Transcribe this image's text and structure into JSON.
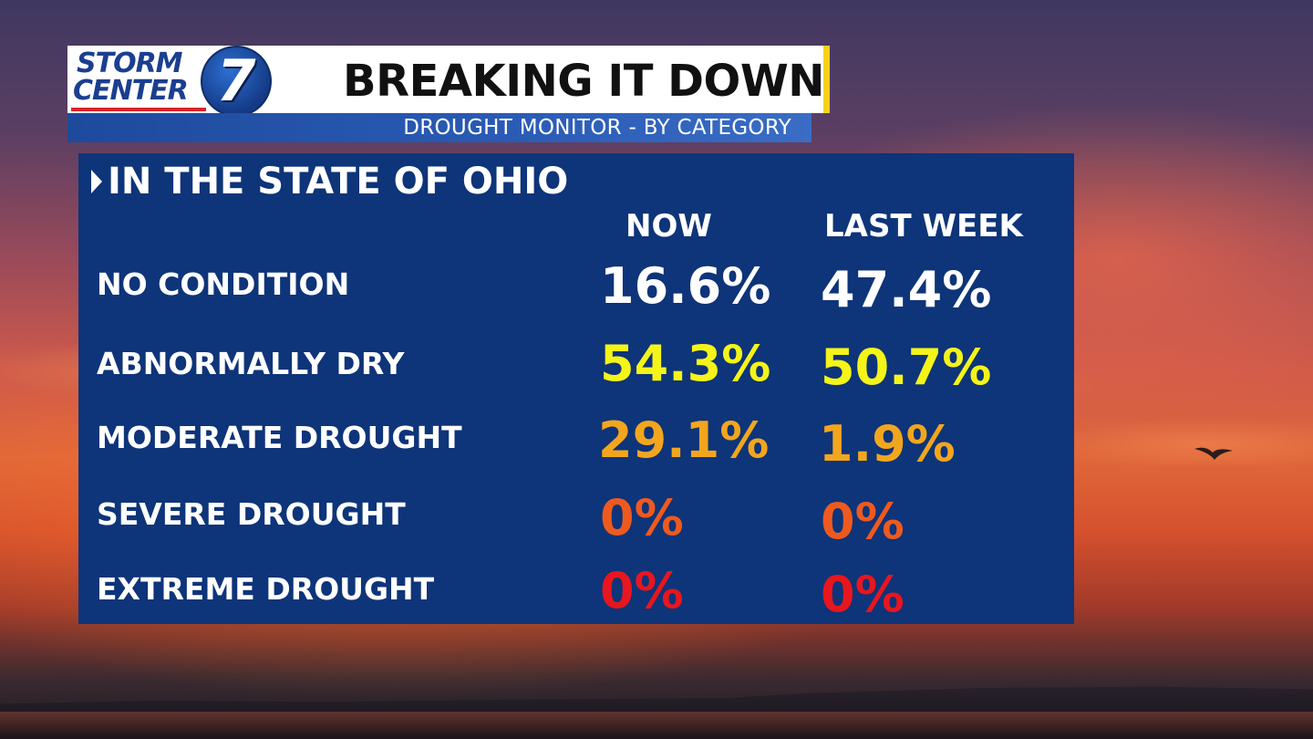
{
  "logo": {
    "line1": "STORM",
    "line2": "CENTER",
    "number": "7"
  },
  "header": {
    "title": "BREAKING IT DOWN",
    "subtitle": "DROUGHT MONITOR - BY CATEGORY"
  },
  "panel": {
    "heading": "IN THE STATE OF OHIO",
    "columns": [
      "NOW",
      "LAST WEEK"
    ],
    "rows": [
      {
        "label": "NO CONDITION",
        "now": "16.6%",
        "last_week": "47.4%",
        "color": "#ffffff"
      },
      {
        "label": "ABNORMALLY DRY",
        "now": "54.3%",
        "last_week": "50.7%",
        "color": "#f4f418"
      },
      {
        "label": "MODERATE DROUGHT",
        "now": "29.1%",
        "last_week": "1.9%",
        "color": "#f2a61e"
      },
      {
        "label": "SEVERE DROUGHT",
        "now": "0%",
        "last_week": "0%",
        "color": "#ee5a1e"
      },
      {
        "label": "EXTREME DROUGHT",
        "now": "0%",
        "last_week": "0%",
        "color": "#e8161e"
      }
    ]
  },
  "colors": {
    "panel_bg": "#0e3479",
    "brand_blue": "#1b3e8f",
    "accent_yellow": "#f6d01a",
    "brand_red": "#d8232a"
  }
}
